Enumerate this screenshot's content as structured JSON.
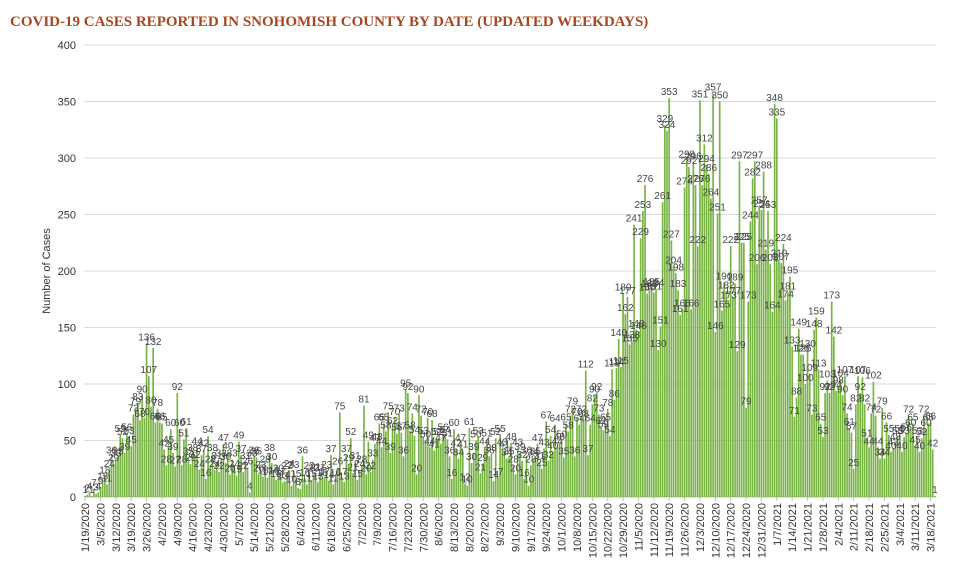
{
  "chart_data": {
    "type": "bar",
    "title": "COVID-19 CASES REPORTED IN SNOHOMISH COUNTY BY DATE (UPDATED WEEKDAYS)",
    "y_label": "Number of Cases",
    "color": "#78b443",
    "grid": true,
    "ylim": [
      0,
      400
    ],
    "yticks": [
      0,
      50,
      100,
      150,
      200,
      250,
      300,
      350,
      400
    ],
    "categories": [
      "1/19/2020",
      null,
      null,
      null,
      null,
      null,
      null,
      "3/5/2020",
      null,
      null,
      null,
      null,
      null,
      null,
      "3/12/2020",
      null,
      null,
      null,
      null,
      null,
      null,
      "3/19/2020",
      null,
      null,
      null,
      null,
      null,
      null,
      "3/26/2020",
      null,
      null,
      null,
      null,
      null,
      null,
      "4/2/2020",
      null,
      null,
      null,
      null,
      null,
      null,
      "4/9/2020",
      null,
      null,
      null,
      null,
      null,
      null,
      "4/16/2020",
      null,
      null,
      null,
      null,
      null,
      null,
      "4/23/2020",
      null,
      null,
      null,
      null,
      null,
      null,
      "4/30/2020",
      null,
      null,
      null,
      null,
      null,
      null,
      "5/7/2020",
      null,
      null,
      null,
      null,
      null,
      null,
      "5/14/2020",
      null,
      null,
      null,
      null,
      null,
      null,
      "5/21/2020",
      null,
      null,
      null,
      null,
      null,
      null,
      "5/28/2020",
      null,
      null,
      null,
      null,
      null,
      null,
      "6/4/2020",
      null,
      null,
      null,
      null,
      null,
      null,
      "6/11/2020",
      null,
      null,
      null,
      null,
      null,
      null,
      "6/18/2020",
      null,
      null,
      null,
      null,
      null,
      null,
      "6/25/2020",
      null,
      null,
      null,
      null,
      null,
      null,
      "7/2/2020",
      null,
      null,
      null,
      null,
      null,
      null,
      "7/9/2020",
      null,
      null,
      null,
      null,
      null,
      null,
      "7/16/2020",
      null,
      null,
      null,
      null,
      null,
      null,
      "7/23/2020",
      null,
      null,
      null,
      null,
      null,
      null,
      "7/30/2020",
      null,
      null,
      null,
      null,
      null,
      null,
      "8/6/2020",
      null,
      null,
      null,
      null,
      null,
      null,
      "8/13/2020",
      null,
      null,
      null,
      null,
      null,
      null,
      "8/20/2020",
      null,
      null,
      null,
      null,
      null,
      null,
      "8/27/2020",
      null,
      null,
      null,
      null,
      null,
      null,
      "9/3/2020",
      null,
      null,
      null,
      null,
      null,
      null,
      "9/10/2020",
      null,
      null,
      null,
      null,
      null,
      null,
      "9/17/2020",
      null,
      null,
      null,
      null,
      null,
      null,
      "9/24/2020",
      null,
      null,
      null,
      null,
      null,
      null,
      "10/1/2020",
      null,
      null,
      null,
      null,
      null,
      null,
      "10/8/2020",
      null,
      null,
      null,
      null,
      null,
      null,
      "10/15/2020",
      null,
      null,
      null,
      null,
      null,
      null,
      "10/22/2020",
      null,
      null,
      null,
      null,
      null,
      null,
      "10/29/2020",
      null,
      null,
      null,
      null,
      null,
      null,
      "11/5/2020",
      null,
      null,
      null,
      null,
      null,
      null,
      "11/12/2020",
      null,
      null,
      null,
      null,
      null,
      null,
      "11/19/2020",
      null,
      null,
      null,
      null,
      null,
      null,
      "11/26/2020",
      null,
      null,
      null,
      null,
      null,
      null,
      "12/3/2020",
      null,
      null,
      null,
      null,
      null,
      null,
      "12/10/2020",
      null,
      null,
      null,
      null,
      null,
      null,
      "12/17/2020",
      null,
      null,
      null,
      null,
      null,
      null,
      "12/24/2020",
      null,
      null,
      null,
      null,
      null,
      null,
      "12/31/2020",
      null,
      null,
      null,
      null,
      null,
      null,
      "1/7/2021",
      null,
      null,
      null,
      null,
      null,
      null,
      "1/14/2021",
      null,
      null,
      null,
      null,
      null,
      null,
      "1/21/2021",
      null,
      null,
      null,
      null,
      null,
      null,
      "1/28/2021",
      null,
      null,
      null,
      null,
      null,
      null,
      "2/4/2021",
      null,
      null,
      null,
      null,
      null,
      null,
      "2/11/2021",
      null,
      null,
      null,
      null,
      null,
      null,
      "2/18/2021",
      null,
      null,
      null,
      null,
      null,
      null,
      "2/25/2021",
      null,
      null,
      null,
      null,
      null,
      null,
      "3/4/2021",
      null,
      null,
      null,
      null,
      null,
      null,
      "3/11/2021",
      null,
      null,
      null,
      null,
      null,
      null,
      "3/18/2021",
      null,
      null
    ],
    "values": [
      1,
      2,
      4,
      1,
      7,
      3,
      4,
      9,
      13,
      18,
      11,
      24,
      36,
      29,
      33,
      35,
      55,
      52,
      39,
      56,
      53,
      45,
      73,
      79,
      83,
      68,
      90,
      70,
      136,
      107,
      80,
      132,
      66,
      78,
      66,
      65,
      42,
      28,
      45,
      60,
      39,
      27,
      92,
      60,
      28,
      51,
      61,
      35,
      29,
      38,
      32,
      44,
      24,
      37,
      42,
      16,
      54,
      28,
      38,
      24,
      31,
      22,
      33,
      47,
      30,
      40,
      20,
      33,
      24,
      19,
      49,
      37,
      22,
      31,
      26,
      4,
      33,
      36,
      35,
      20,
      23,
      18,
      28,
      17,
      38,
      30,
      18,
      15,
      20,
      17,
      13,
      14,
      22,
      24,
      10,
      23,
      15,
      8,
      7,
      36,
      16,
      11,
      22,
      15,
      20,
      21,
      13,
      21,
      16,
      17,
      23,
      14,
      37,
      11,
      16,
      26,
      75,
      17,
      13,
      37,
      29,
      52,
      21,
      31,
      15,
      24,
      28,
      81,
      20,
      49,
      22,
      33,
      47,
      48,
      65,
      44,
      65,
      58,
      75,
      39,
      62,
      70,
      56,
      73,
      57,
      36,
      95,
      92,
      58,
      74,
      54,
      20,
      90,
      72,
      53,
      50,
      70,
      44,
      68,
      41,
      52,
      52,
      47,
      56,
      54,
      51,
      36,
      16,
      60,
      42,
      34,
      47,
      41,
      12,
      10,
      61,
      30,
      39,
      50,
      53,
      21,
      29,
      44,
      51,
      36,
      38,
      14,
      52,
      17,
      55,
      43,
      41,
      34,
      35,
      48,
      28,
      20,
      43,
      39,
      32,
      16,
      36,
      10,
      28,
      34,
      35,
      47,
      31,
      25,
      43,
      67,
      32,
      54,
      40,
      64,
      44,
      48,
      50,
      35,
      65,
      58,
      72,
      79,
      36,
      70,
      64,
      72,
      68,
      112,
      37,
      64,
      82,
      90,
      92,
      73,
      62,
      59,
      65,
      78,
      54,
      113,
      86,
      114,
      140,
      115,
      180,
      162,
      177,
      135,
      138,
      241,
      148,
      146,
      229,
      253,
      276,
      180,
      183,
      185,
      181,
      184,
      130,
      151,
      261,
      329,
      324,
      353,
      227,
      204,
      198,
      183,
      161,
      166,
      274,
      298,
      292,
      166,
      296,
      276,
      222,
      351,
      276,
      312,
      294,
      286,
      264,
      357,
      146,
      251,
      350,
      165,
      190,
      182,
      173,
      222,
      177,
      189,
      129,
      297,
      225,
      225,
      79,
      173,
      244,
      282,
      297,
      206,
      257,
      254,
      288,
      219,
      253,
      206,
      164,
      348,
      335,
      210,
      207,
      224,
      174,
      181,
      195,
      133,
      71,
      88,
      149,
      126,
      126,
      100,
      130,
      109,
      73,
      148,
      159,
      113,
      65,
      53,
      92,
      103,
      92,
      173,
      142,
      94,
      98,
      104,
      90,
      107,
      74,
      61,
      57,
      25,
      82,
      107,
      92,
      106,
      82,
      51,
      44,
      74,
      102,
      72,
      44,
      34,
      79,
      34,
      66,
      55,
      40,
      43,
      48,
      53,
      55,
      40,
      53,
      56,
      72,
      60,
      65,
      45,
      53,
      40,
      52,
      72,
      60,
      65,
      66,
      42,
      1
    ]
  }
}
